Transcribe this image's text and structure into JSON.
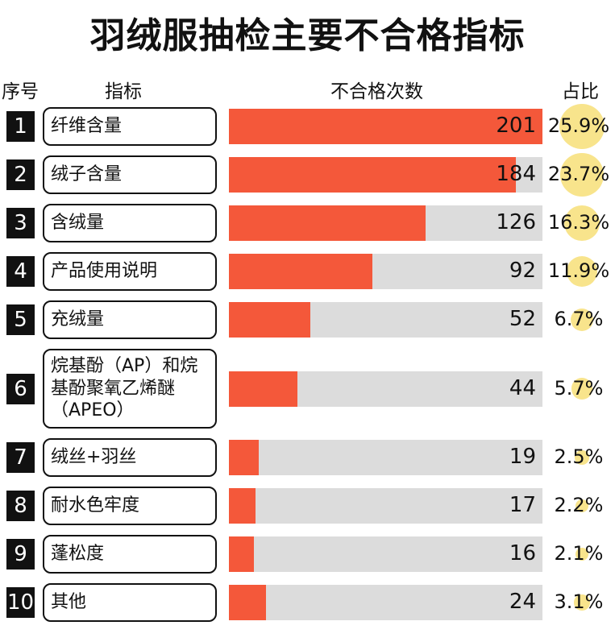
{
  "chart_data": {
    "type": "bar",
    "title": "羽绒服抽检主要不合格指标",
    "headers": [
      "序号",
      "指标",
      "不合格次数",
      "占比"
    ],
    "index": [
      1,
      2,
      3,
      4,
      5,
      6,
      7,
      8,
      9,
      10
    ],
    "categories": [
      "纤维含量",
      "绒子含量",
      "含绒量",
      "产品使用说明",
      "充绒量",
      "烷基酚（AP）和烷基酚聚氧乙烯醚（APEO）",
      "绒丝+羽丝",
      "耐水色牢度",
      "蓬松度",
      "其他"
    ],
    "values": [
      201,
      184,
      126,
      92,
      52,
      44,
      19,
      17,
      16,
      24
    ],
    "color": "#f4583a",
    "xlim": [
      0,
      201
    ],
    "shares": [
      25.9,
      23.7,
      16.3,
      11.9,
      6.7,
      5.7,
      2.5,
      2.2,
      2.1,
      3.1
    ],
    "share_labels": [
      "25.9%",
      "23.7%",
      "16.3%",
      "11.9%",
      "6.7%",
      "5.7%",
      "2.5%",
      "2.2%",
      "2.1%",
      "3.1%"
    ],
    "share_color": "#f8e48c"
  }
}
